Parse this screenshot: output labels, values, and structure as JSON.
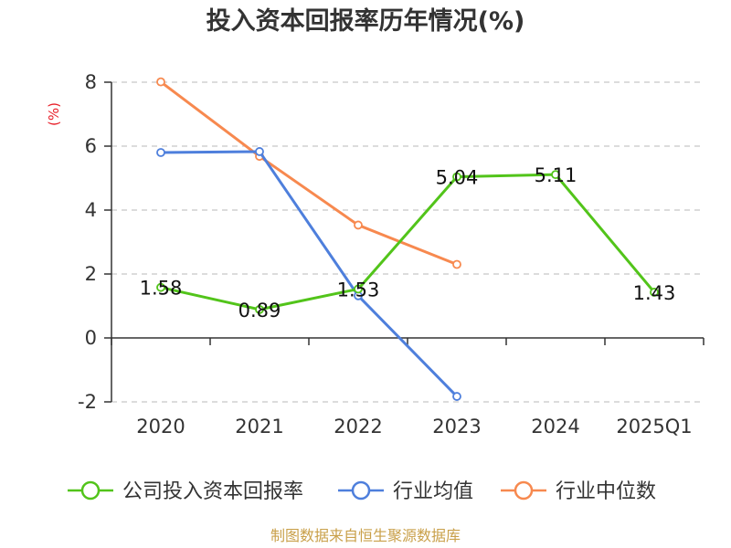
{
  "chart_data": {
    "type": "line",
    "title": "投入资本回报率历年情况(%)",
    "ylabel": "(%)",
    "xlabel": "",
    "categories": [
      "2020",
      "2021",
      "2022",
      "2023",
      "2024",
      "2025Q1"
    ],
    "ylim": [
      -2,
      8
    ],
    "yticks": [
      -2,
      0,
      2,
      4,
      6,
      8
    ],
    "grid": true,
    "legend_position": "bottom",
    "series": [
      {
        "name": "公司投入资本回报率",
        "color": "#52c41a",
        "values": [
          1.58,
          0.89,
          1.53,
          5.04,
          5.11,
          1.43
        ],
        "labels": [
          "1.58",
          "0.89",
          "1.53",
          "5.04",
          "5.11",
          "1.43"
        ]
      },
      {
        "name": "行业均值",
        "color": "#4e7fdc",
        "values": [
          5.8,
          5.83,
          1.32,
          -1.83,
          null,
          null
        ]
      },
      {
        "name": "行业中位数",
        "color": "#f7894f",
        "values": [
          8.01,
          5.68,
          3.53,
          2.3,
          null,
          null
        ]
      }
    ]
  },
  "footer": {
    "source": "制图数据来自恒生聚源数据库"
  }
}
